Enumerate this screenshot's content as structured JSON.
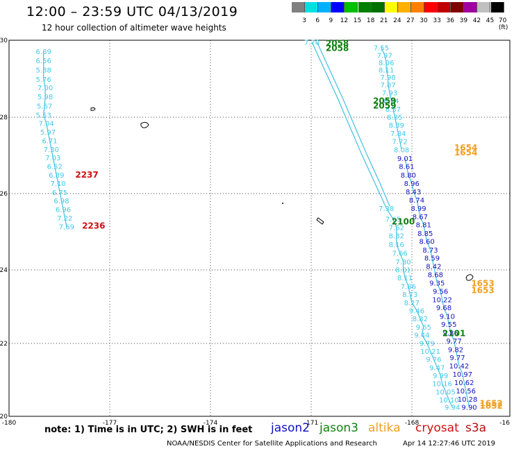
{
  "title": "12:00 – 23:59 UTC 04/13/2019",
  "subtitle": "12 hour collection of altimeter wave heights",
  "colorbar": {
    "colors": [
      "#808080",
      "#00e0e0",
      "#00b0ff",
      "#0000ff",
      "#00c000",
      "#008000",
      "#007000",
      "#ffff00",
      "#ffb000",
      "#ff8000",
      "#ff0000",
      "#c00000",
      "#800000",
      "#a000a0",
      "#c0c0c0",
      "#000000"
    ],
    "labels": [
      "3",
      "6",
      "9",
      "12",
      "15",
      "18",
      "21",
      "24",
      "27",
      "30",
      "33",
      "36",
      "39",
      "42",
      "45",
      "70 (ft)"
    ]
  },
  "axes": {
    "x_ticks": [
      "-180",
      "-177",
      "-174",
      "-171",
      "-168",
      "-16"
    ],
    "y_ticks": [
      "30",
      "28",
      "26",
      "24",
      "22",
      "20"
    ]
  },
  "map_extent": {
    "lon": [
      -180,
      -165.2
    ],
    "lat": [
      19.8,
      30
    ]
  },
  "track_color": "#40c0e0",
  "tracks": [
    {
      "satellite": "s3a",
      "color": "#40c8e8",
      "points": [
        [
          -178.98,
          29.7,
          "6.89"
        ],
        [
          -178.98,
          29.45,
          "6.56"
        ],
        [
          -178.98,
          29.2,
          "5.88"
        ],
        [
          -178.98,
          28.95,
          "5.76"
        ],
        [
          -178.93,
          28.72,
          "7.00"
        ],
        [
          -178.93,
          28.48,
          "5.98"
        ],
        [
          -178.95,
          28.22,
          "5.67"
        ],
        [
          -178.98,
          27.98,
          "5.53"
        ],
        [
          -178.9,
          27.75,
          "7.04"
        ],
        [
          -178.85,
          27.52,
          "5.97"
        ],
        [
          -178.8,
          27.28,
          "6.71"
        ],
        [
          -178.75,
          27.05,
          "7.30"
        ],
        [
          -178.7,
          26.82,
          "7.03"
        ],
        [
          -178.65,
          26.58,
          "6.52"
        ],
        [
          -178.6,
          26.35,
          "6.89"
        ],
        [
          -178.55,
          26.12,
          "7.10"
        ],
        [
          -178.5,
          25.88,
          "6.75"
        ],
        [
          -178.45,
          25.65,
          "6.98"
        ],
        [
          -178.4,
          25.42,
          "6.96"
        ],
        [
          -178.35,
          25.18,
          "7.22"
        ],
        [
          -178.3,
          24.95,
          "7.69"
        ]
      ]
    },
    {
      "satellite": "jason3-a",
      "color": "#40c8e8",
      "points": [
        [
          -171.05,
          29.95,
          "7.70"
        ],
        [
          -170.7,
          29.25,
          ""
        ],
        [
          -170.3,
          28.45,
          ""
        ],
        [
          -169.95,
          27.7,
          ""
        ],
        [
          -169.6,
          26.95,
          ""
        ],
        [
          -169.2,
          26.15,
          ""
        ],
        [
          -168.85,
          25.45,
          "7.38"
        ],
        [
          -168.65,
          25.15,
          "7.65"
        ],
        [
          -168.55,
          24.93,
          "7.62"
        ],
        [
          -168.55,
          24.7,
          "8.32"
        ],
        [
          -168.55,
          24.47,
          "8.16"
        ],
        [
          -168.45,
          24.23,
          "7.66"
        ],
        [
          -168.35,
          24.0,
          "7.80"
        ],
        [
          -168.35,
          23.78,
          "8.01"
        ],
        [
          -168.3,
          23.56,
          "8.11"
        ],
        [
          -168.2,
          23.33,
          "7.86"
        ],
        [
          -168.15,
          23.11,
          "8.73"
        ],
        [
          -168.1,
          22.89,
          "8.27"
        ],
        [
          -167.95,
          22.67,
          "9.46"
        ],
        [
          -167.85,
          22.45,
          "8.82"
        ],
        [
          -167.75,
          22.23,
          "9.65"
        ],
        [
          -167.8,
          22.01,
          "9.44"
        ],
        [
          -167.65,
          21.79,
          "9.79"
        ],
        [
          -167.55,
          21.57,
          "10.21"
        ],
        [
          -167.45,
          21.35,
          "9.76"
        ],
        [
          -167.35,
          21.13,
          "9.47"
        ],
        [
          -167.25,
          20.91,
          "9.99"
        ],
        [
          -167.2,
          20.69,
          "10.16"
        ],
        [
          -167.1,
          20.47,
          "10.05"
        ],
        [
          -167.0,
          20.25,
          "10.10"
        ],
        [
          -166.9,
          20.05,
          "9.94"
        ]
      ]
    },
    {
      "satellite": "jason3-b",
      "color": "#40c8e8",
      "points": [
        [
          -170.9,
          29.95,
          ""
        ],
        [
          -170.55,
          29.25,
          ""
        ],
        [
          -170.15,
          28.45,
          ""
        ],
        [
          -169.8,
          27.7,
          ""
        ],
        [
          -169.45,
          26.95,
          ""
        ],
        [
          -169.05,
          26.15,
          ""
        ],
        [
          -168.75,
          25.5,
          ""
        ]
      ]
    },
    {
      "satellite": "jason2-a",
      "color": "#40c8e8",
      "points": [
        [
          -169.0,
          29.8,
          "7.55"
        ],
        [
          -168.9,
          29.6,
          "7.97"
        ],
        [
          -168.85,
          29.4,
          "8.06"
        ],
        [
          -168.85,
          29.2,
          "8.11"
        ],
        [
          -168.8,
          29.0,
          "7.98"
        ],
        [
          -168.8,
          28.8,
          "7.87"
        ],
        [
          -168.75,
          28.58,
          "7.93"
        ],
        [
          -168.7,
          28.36,
          "8.24"
        ],
        [
          -168.65,
          28.14,
          "8.37"
        ],
        [
          -168.6,
          27.92,
          "8.35"
        ],
        [
          -168.55,
          27.7,
          "8.39"
        ],
        [
          -168.5,
          27.48,
          "7.84"
        ],
        [
          -168.45,
          27.26,
          "7.72"
        ],
        [
          -168.4,
          27.04,
          "8.08"
        ]
      ]
    },
    {
      "satellite": "jason2-b",
      "color": "#1010c0",
      "points": [
        [
          -168.3,
          26.8,
          "9.01"
        ],
        [
          -168.25,
          26.58,
          "8.61"
        ],
        [
          -168.2,
          26.35,
          "8.80"
        ],
        [
          -168.1,
          26.12,
          "8.96"
        ],
        [
          -168.05,
          25.9,
          "8.43"
        ],
        [
          -167.95,
          25.67,
          "8.74"
        ],
        [
          -167.9,
          25.45,
          "8.99"
        ],
        [
          -167.85,
          25.22,
          "8.67"
        ],
        [
          -167.75,
          25.0,
          "8.81"
        ],
        [
          -167.7,
          24.77,
          "8.85"
        ],
        [
          -167.65,
          24.55,
          "8.60"
        ],
        [
          -167.55,
          24.32,
          "8.73"
        ],
        [
          -167.5,
          24.1,
          "8.59"
        ],
        [
          -167.45,
          23.87,
          "8.42"
        ],
        [
          -167.4,
          23.65,
          "8.68"
        ],
        [
          -167.35,
          23.42,
          "9.35"
        ],
        [
          -167.25,
          23.2,
          "9.56"
        ],
        [
          -167.2,
          22.97,
          "10.22"
        ],
        [
          -167.15,
          22.75,
          "9.68"
        ],
        [
          -167.05,
          22.52,
          "9.10"
        ],
        [
          -167.0,
          22.3,
          "9.55"
        ],
        [
          -166.95,
          22.07,
          "9.86"
        ],
        [
          -166.85,
          21.85,
          "9.77"
        ],
        [
          -166.8,
          21.62,
          "9.82"
        ],
        [
          -166.75,
          21.4,
          "9.77"
        ],
        [
          -166.7,
          21.17,
          "10.42"
        ],
        [
          -166.6,
          20.95,
          "10.97"
        ],
        [
          -166.55,
          20.72,
          "10.62"
        ],
        [
          -166.5,
          20.5,
          "10.56"
        ],
        [
          -166.45,
          20.27,
          "10.28"
        ],
        [
          -166.4,
          20.05,
          "9.90"
        ]
      ]
    }
  ],
  "pass_labels": [
    {
      "text": "2058",
      "color": "#108010",
      "lon": -170.3,
      "lat": 29.92
    },
    {
      "text": "2058",
      "color": "#108010",
      "lon": -170.3,
      "lat": 29.78
    },
    {
      "text": "2059",
      "color": "#108010",
      "lon": -168.9,
      "lat": 28.35
    },
    {
      "text": "2059",
      "color": "#108010",
      "lon": -168.9,
      "lat": 28.22
    },
    {
      "text": "2100",
      "color": "#108010",
      "lon": -168.35,
      "lat": 25.08
    },
    {
      "text": "2101",
      "color": "#108010",
      "lon": -166.85,
      "lat": 22.05
    },
    {
      "text": "2237",
      "color": "#d01010",
      "lon": -177.7,
      "lat": 26.35
    },
    {
      "text": "2236",
      "color": "#d01010",
      "lon": -177.5,
      "lat": 24.97
    },
    {
      "text": "1654",
      "color": "#f0a020",
      "lon": -166.5,
      "lat": 27.08
    },
    {
      "text": "1654",
      "color": "#f0a020",
      "lon": -166.5,
      "lat": 26.95
    },
    {
      "text": "1653",
      "color": "#f0a020",
      "lon": -166.0,
      "lat": 23.4
    },
    {
      "text": "1653",
      "color": "#f0a020",
      "lon": -166.0,
      "lat": 23.22
    },
    {
      "text": "1652",
      "color": "#f0a020",
      "lon": -165.75,
      "lat": 20.15
    },
    {
      "text": "1652",
      "color": "#f0a020",
      "lon": -165.75,
      "lat": 20.08
    }
  ],
  "note": "note: 1) Time is in UTC; 2) SWH is in feet",
  "legend": [
    {
      "name": "jason2",
      "color": "#1010c0"
    },
    {
      "name": "jason3",
      "color": "#108010"
    },
    {
      "name": "altika",
      "color": "#f0a020"
    },
    {
      "name": "cryosat",
      "color": "#d01010"
    },
    {
      "name": "s3a",
      "color": "#b01010"
    }
  ],
  "credit": "NOAA/NESDIS Center for Satellite Applications and Research",
  "timestamp": "Apr 14 12:27:46 UTC 2019"
}
